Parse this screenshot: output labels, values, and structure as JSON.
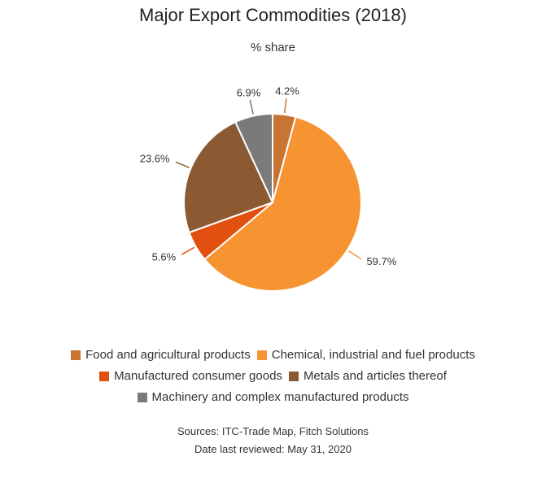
{
  "chart_data": {
    "type": "pie",
    "title": "Major Export Commodities (2018)",
    "subtitle": "% share",
    "slices": [
      {
        "label": "Food and agricultural products",
        "value": 4.2,
        "display": "4.2%",
        "color": "#C87533"
      },
      {
        "label": "Chemical, industrial and fuel products",
        "value": 59.7,
        "display": "59.7%",
        "color": "#F79432"
      },
      {
        "label": "Manufactured consumer goods",
        "value": 5.6,
        "display": "5.6%",
        "color": "#E2500F"
      },
      {
        "label": "Metals and articles thereof",
        "value": 23.6,
        "display": "23.6%",
        "color": "#8B5A32"
      },
      {
        "label": "Machinery and complex manufactured products",
        "value": 6.9,
        "display": "6.9%",
        "color": "#7A7A7A"
      }
    ],
    "legend_placement": "bottom"
  },
  "footer": {
    "source": "Sources: ITC-Trade Map, Fitch Solutions",
    "reviewed": "Date last reviewed: May 31, 2020"
  }
}
